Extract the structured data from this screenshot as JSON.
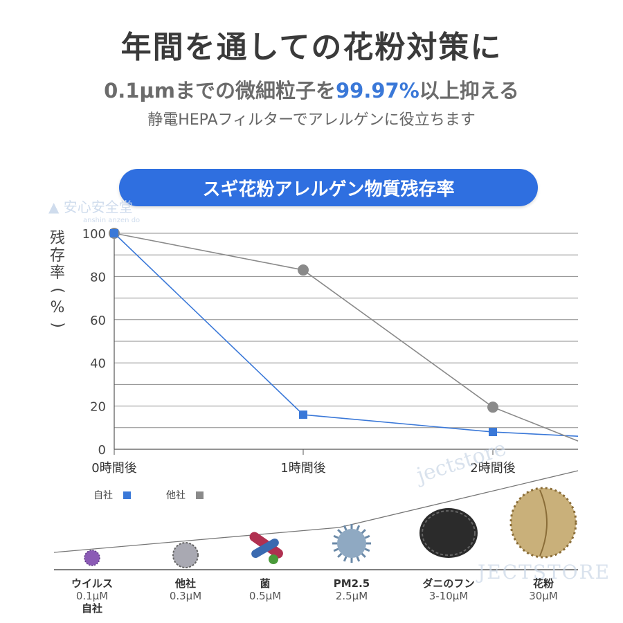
{
  "header": {
    "title": "年間を通しての花粉対策に",
    "subtitle_pre": "0.1μmまでの微細粒子を",
    "subtitle_hl": "99.97%",
    "subtitle_post": "以上抑える",
    "description": "静電HEPAフィルターでアレルゲンに役立ちます",
    "accent_color": "#3a78d8"
  },
  "chart_data": {
    "type": "line",
    "title": "スギ花粉アレルゲン物質残存率",
    "ylabel": "残存率(%)",
    "categories": [
      "0時間後",
      "1時間後",
      "2時間後"
    ],
    "ylim": [
      0,
      100
    ],
    "yticks": [
      0,
      20,
      40,
      60,
      80,
      100
    ],
    "grid": true,
    "series": [
      {
        "name": "自社",
        "color": "#3a78d8",
        "marker": "square",
        "values": [
          100,
          16,
          8
        ]
      },
      {
        "name": "他社",
        "color": "#8a8a8a",
        "marker": "circle",
        "values": [
          100,
          83,
          19.5
        ]
      }
    ],
    "legend_position": "bottom-left"
  },
  "particles": [
    {
      "name": "ウイルス",
      "size": "0.1μM",
      "note": "自社"
    },
    {
      "name": "他社",
      "size": "0.3μM",
      "note": ""
    },
    {
      "name": "菌",
      "size": "0.5μM",
      "note": ""
    },
    {
      "name": "PM2.5",
      "size": "2.5μM",
      "note": ""
    },
    {
      "name": "ダニのフン",
      "size": "3-10μM",
      "note": ""
    },
    {
      "name": "花粉",
      "size": "30μM",
      "note": ""
    }
  ],
  "watermarks": {
    "brand1": "安心安全堂",
    "brand1_sub": "anshin anzen do",
    "brand2": "jectstore",
    "brand3": "JECTSTORE"
  }
}
